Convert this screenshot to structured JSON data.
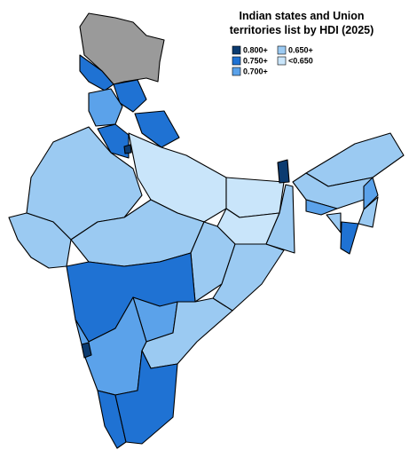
{
  "title": [
    "Indian states and Union",
    "territories list by HDI (2025)"
  ],
  "legend": [
    {
      "label": "0.800+",
      "color": "#0c3b70"
    },
    {
      "label": "0.750+",
      "color": "#1f72d3"
    },
    {
      "label": "0.700+",
      "color": "#5ba2ea"
    },
    {
      "label": "0.650+",
      "color": "#9bcaf2"
    },
    {
      "label": "<0.650",
      "color": "#c9e5fa"
    }
  ]
}
